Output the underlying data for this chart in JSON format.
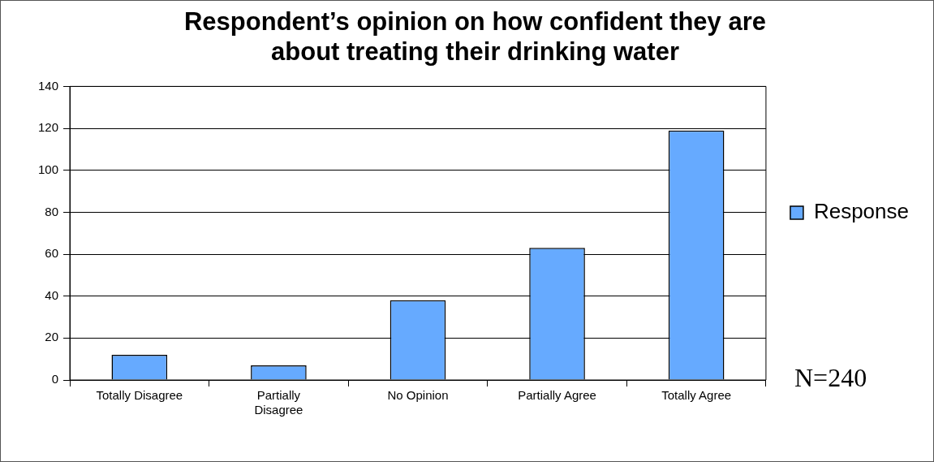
{
  "chart_data": {
    "type": "bar",
    "title": "Respondent’s opinion on how confident they are about treating their drinking water",
    "categories": [
      "Totally Disagree",
      "Partially Disagree",
      "No Opinion",
      "Partially Agree",
      "Totally Agree"
    ],
    "series": [
      {
        "name": "Response",
        "color": "#66aaff",
        "values": [
          12,
          7,
          38,
          63,
          119
        ]
      }
    ],
    "ylim": [
      0,
      140
    ],
    "yticks": [
      0,
      20,
      40,
      60,
      80,
      100,
      120,
      140
    ],
    "grid": "y",
    "legend": "right",
    "annotations": [
      "N=240"
    ]
  }
}
